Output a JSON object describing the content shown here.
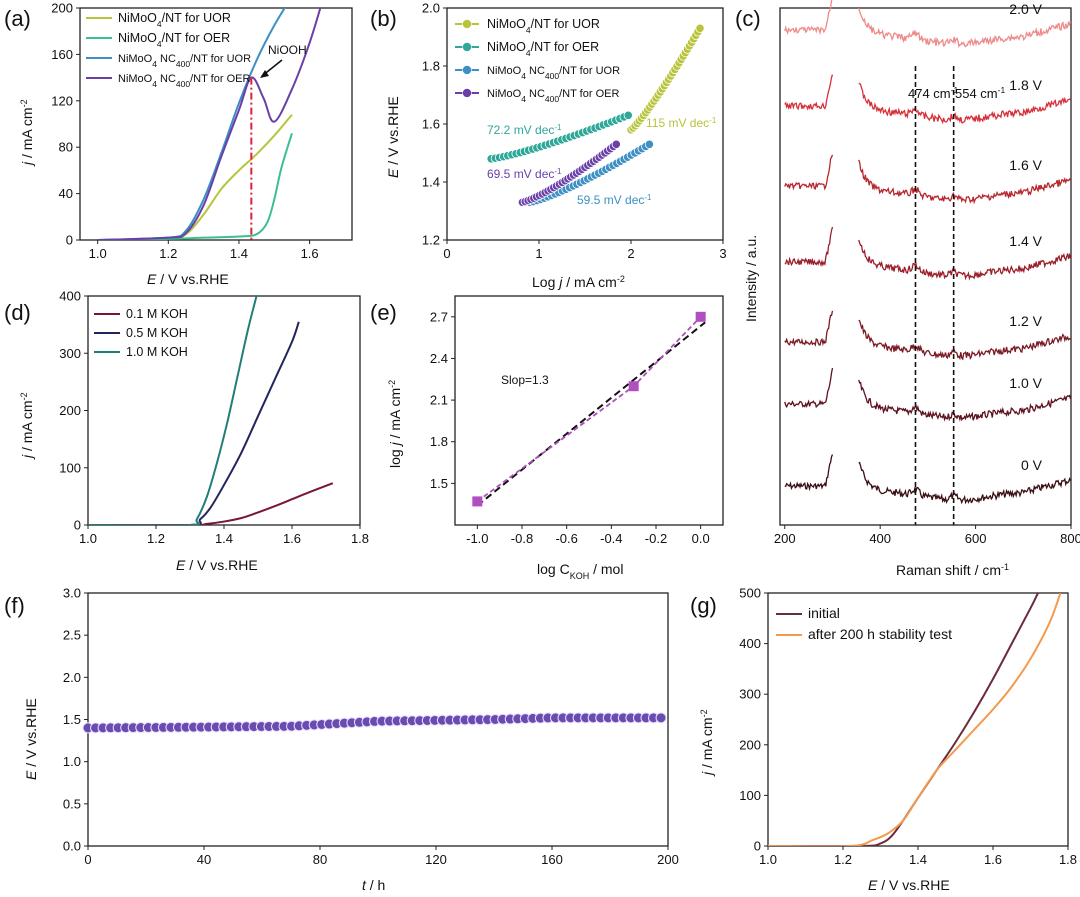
{
  "colors": {
    "yellow": "#b8c43a",
    "green": "#3cbf8c",
    "blue": "#3d8fc4",
    "purple": "#6a3fa8",
    "teal": "#2fa89a",
    "darkred": "#7a1630",
    "navy": "#23235e",
    "darkteal": "#1f7f78",
    "magenta": "#b14ec0",
    "raman": [
      "#3a1016",
      "#5e1220",
      "#7a1a24",
      "#9a1f2a",
      "#b8262e",
      "#d6303a",
      "#ee8a8a"
    ],
    "initial": "#6b2c3a",
    "after": "#f39a4e",
    "stability": "#6a4cb0"
  },
  "chart_data": [
    {
      "panel": "(a)",
      "type": "line",
      "xlabel_italic": "E",
      "xlabel_rest": " / V vs.RHE",
      "ylabel_italic": "j",
      "ylabel_rest": " / mA cm",
      "ylabel_sup": "-2",
      "xlim": [
        0.95,
        1.72
      ],
      "ylim": [
        0,
        200
      ],
      "xticks": [
        "1.0",
        "1.2",
        "1.4",
        "1.6"
      ],
      "yticks": [
        "0",
        "40",
        "80",
        "120",
        "160",
        "200"
      ],
      "annotation": "NiOOH",
      "marker_x": 1.435,
      "series": [
        {
          "name_pre": "NiMoO",
          "name_sub": "4",
          "name_post": "/NT for UOR",
          "color": "yellow",
          "x": [
            1.0,
            1.2,
            1.25,
            1.3,
            1.35,
            1.4,
            1.45,
            1.5,
            1.55
          ],
          "y": [
            0,
            2,
            5,
            22,
            44,
            60,
            74,
            90,
            108
          ]
        },
        {
          "name_pre": "NiMoO",
          "name_sub": "4",
          "name_post": "/NT for OER",
          "color": "green",
          "x": [
            1.0,
            1.2,
            1.3,
            1.4,
            1.45,
            1.48,
            1.5,
            1.52,
            1.55
          ],
          "y": [
            0,
            1,
            2,
            3,
            5,
            15,
            35,
            62,
            92
          ]
        },
        {
          "name_pre": "NiMoO",
          "name_sub": "4",
          "name_mid": " NC",
          "name_sub2": "400",
          "name_post": "/NT for UOR",
          "color": "blue",
          "x": [
            1.0,
            1.2,
            1.25,
            1.3,
            1.35,
            1.4,
            1.45,
            1.5,
            1.55
          ],
          "y": [
            0,
            2,
            8,
            35,
            75,
            118,
            155,
            185,
            210
          ]
        },
        {
          "name_pre": "NiMoO",
          "name_sub": "4",
          "name_mid": " NC",
          "name_sub2": "400",
          "name_post": "/NT for OER",
          "color": "purple",
          "x": [
            1.0,
            1.2,
            1.25,
            1.3,
            1.35,
            1.4,
            1.435,
            1.47,
            1.5,
            1.55,
            1.6,
            1.64
          ],
          "y": [
            0,
            2,
            6,
            30,
            72,
            112,
            140,
            122,
            102,
            130,
            170,
            210
          ]
        }
      ]
    },
    {
      "panel": "(b)",
      "type": "scatter",
      "xlabel_pre": "Log ",
      "xlabel_italic": "j",
      "xlabel_rest": " / mA cm",
      "xlabel_sup": "-2",
      "ylabel_italic": "E",
      "ylabel_rest": " / V vs.RHE",
      "xlim": [
        0,
        3
      ],
      "ylim": [
        1.2,
        2.0
      ],
      "xticks": [
        "0",
        "1",
        "2",
        "3"
      ],
      "yticks": [
        "1.2",
        "1.4",
        "1.6",
        "1.8",
        "2.0"
      ],
      "series": [
        {
          "name_pre": "NiMoO",
          "name_sub": "4",
          "name_post": "/NT for UOR",
          "color": "yellow",
          "x": [
            2.0,
            2.75
          ],
          "y": [
            1.58,
            1.93
          ],
          "slope": "115 mV dec",
          "slope_sup": "-1"
        },
        {
          "name_pre": "NiMoO",
          "name_sub": "4",
          "name_post": "/NT for OER",
          "color": "teal",
          "x": [
            0.48,
            1.97
          ],
          "y": [
            1.48,
            1.63
          ],
          "slope": "72.2 mV dec",
          "slope_sup": "-1"
        },
        {
          "name_pre": "NiMoO",
          "name_sub": "4",
          "name_mid": " NC",
          "name_sub2": "400",
          "name_post": "/NT for UOR",
          "color": "blue",
          "x": [
            0.9,
            2.2
          ],
          "y": [
            1.33,
            1.53
          ],
          "slope": "59.5 mV dec",
          "slope_sup": "-1"
        },
        {
          "name_pre": "NiMoO",
          "name_sub": "4",
          "name_mid": " NC",
          "name_sub2": "400",
          "name_post": "/NT for OER",
          "color": "purple",
          "x": [
            0.82,
            1.84
          ],
          "y": [
            1.33,
            1.53
          ],
          "slope": "69.5 mV dec",
          "slope_sup": "-1"
        }
      ]
    },
    {
      "panel": "(c)",
      "type": "line",
      "xlabel": "Raman shift / cm",
      "xlabel_sup": "-1",
      "ylabel": "Intensity / a.u.",
      "xlim": [
        190,
        800
      ],
      "xticks": [
        "200",
        "400",
        "600",
        "800"
      ],
      "xtick_values": [
        200,
        400,
        600,
        800
      ],
      "peaks": [
        {
          "x": 474,
          "label": "474 cm",
          "sup": "-1"
        },
        {
          "x": 554,
          "label": "554 cm",
          "sup": "-1"
        }
      ],
      "series": [
        {
          "name": "0 V",
          "offset": 0.0
        },
        {
          "name": "1.0 V",
          "offset": 1.0
        },
        {
          "name": "1.2 V",
          "offset": 2.0
        },
        {
          "name": "1.4 V",
          "offset": 3.0
        },
        {
          "name": "1.6 V",
          "offset": 4.0
        },
        {
          "name": "1.8 V",
          "offset": 5.0
        },
        {
          "name": "2.0 V",
          "offset": 6.0
        }
      ]
    },
    {
      "panel": "(d)",
      "type": "line",
      "xlabel_italic": "E",
      "xlabel_rest": " / V vs.RHE",
      "ylabel_italic": "j",
      "ylabel_rest": " / mA cm",
      "ylabel_sup": "-2",
      "xlim": [
        1.0,
        1.8
      ],
      "ylim": [
        0,
        400
      ],
      "xticks": [
        "1.0",
        "1.2",
        "1.4",
        "1.6",
        "1.8"
      ],
      "yticks": [
        "0",
        "100",
        "200",
        "300",
        "400"
      ],
      "series": [
        {
          "name": "0.1 M KOH",
          "color": "darkred",
          "x": [
            1.0,
            1.3,
            1.35,
            1.4,
            1.45,
            1.5,
            1.55,
            1.6,
            1.65,
            1.72
          ],
          "y": [
            0,
            0,
            2,
            6,
            12,
            22,
            33,
            45,
            57,
            73
          ]
        },
        {
          "name": "0.5 M KOH",
          "color": "navy",
          "x": [
            1.0,
            1.3,
            1.33,
            1.36,
            1.4,
            1.45,
            1.5,
            1.55,
            1.6,
            1.62
          ],
          "y": [
            0,
            0,
            10,
            30,
            70,
            125,
            190,
            255,
            320,
            355
          ]
        },
        {
          "name": "1.0 M KOH",
          "color": "darkteal",
          "x": [
            1.0,
            1.3,
            1.32,
            1.35,
            1.38,
            1.41,
            1.44,
            1.47,
            1.5
          ],
          "y": [
            0,
            0,
            10,
            50,
            110,
            180,
            260,
            340,
            410
          ]
        }
      ]
    },
    {
      "panel": "(e)",
      "type": "scatter",
      "xlabel": "log C",
      "xlabel_sub": "KOH",
      "xlabel_rest": " / mol",
      "ylabel_pre": "log ",
      "ylabel_italic": "j",
      "ylabel_rest": " / mA cm",
      "ylabel_sup": "-2",
      "xlim": [
        -1.1,
        0.1
      ],
      "ylim": [
        1.2,
        2.85
      ],
      "xticks": [
        "-1.0",
        "-0.8",
        "-0.6",
        "-0.4",
        "-0.2",
        "0.0"
      ],
      "xtick_values": [
        -1.0,
        -0.8,
        -0.6,
        -0.4,
        -0.2,
        0.0
      ],
      "yticks": [
        "1.5",
        "1.8",
        "2.1",
        "2.4",
        "2.7"
      ],
      "ytick_values": [
        1.5,
        1.8,
        2.1,
        2.4,
        2.7
      ],
      "x": [
        -1.0,
        -0.3,
        0.0
      ],
      "y": [
        1.37,
        2.2,
        2.7
      ],
      "fit": {
        "x": [
          -1.0,
          0.02
        ],
        "y": [
          1.34,
          2.66
        ]
      },
      "annotation": "Slop=1.3"
    },
    {
      "panel": "(f)",
      "type": "scatter",
      "xlabel_italic": "t",
      "xlabel_rest": " / h",
      "ylabel_italic": "E",
      "ylabel_rest": " / V vs.RHE",
      "xlim": [
        0,
        200
      ],
      "ylim": [
        0,
        3.0
      ],
      "xticks": [
        "0",
        "40",
        "80",
        "120",
        "160",
        "200"
      ],
      "yticks": [
        "0.0",
        "0.5",
        "1.0",
        "1.5",
        "2.0",
        "2.5",
        "3.0"
      ],
      "x": [
        0,
        40,
        70,
        100,
        140,
        160,
        180,
        200
      ],
      "y": [
        1.4,
        1.41,
        1.42,
        1.48,
        1.5,
        1.52,
        1.52,
        1.52
      ]
    },
    {
      "panel": "(g)",
      "type": "line",
      "xlabel_italic": "E",
      "xlabel_rest": " / V vs.RHE",
      "ylabel_italic": "j",
      "ylabel_rest": " / mA cm",
      "ylabel_sup": "-2",
      "xlim": [
        1.0,
        1.8
      ],
      "ylim": [
        0,
        500
      ],
      "xticks": [
        "1.0",
        "1.2",
        "1.4",
        "1.6",
        "1.8"
      ],
      "yticks": [
        "0",
        "100",
        "200",
        "300",
        "400",
        "500"
      ],
      "series": [
        {
          "name": "initial",
          "color": "initial",
          "x": [
            1.0,
            1.25,
            1.3,
            1.33,
            1.36,
            1.4,
            1.45,
            1.5,
            1.55,
            1.6,
            1.65,
            1.7,
            1.72
          ],
          "y": [
            0,
            0,
            5,
            20,
            50,
            95,
            150,
            205,
            265,
            330,
            400,
            470,
            500
          ]
        },
        {
          "name": "after 200 h stability test",
          "color": "after",
          "x": [
            1.0,
            1.22,
            1.28,
            1.32,
            1.36,
            1.4,
            1.45,
            1.5,
            1.55,
            1.6,
            1.65,
            1.7,
            1.75,
            1.78
          ],
          "y": [
            0,
            0,
            12,
            25,
            50,
            95,
            150,
            190,
            230,
            270,
            315,
            370,
            440,
            500
          ]
        }
      ]
    }
  ]
}
